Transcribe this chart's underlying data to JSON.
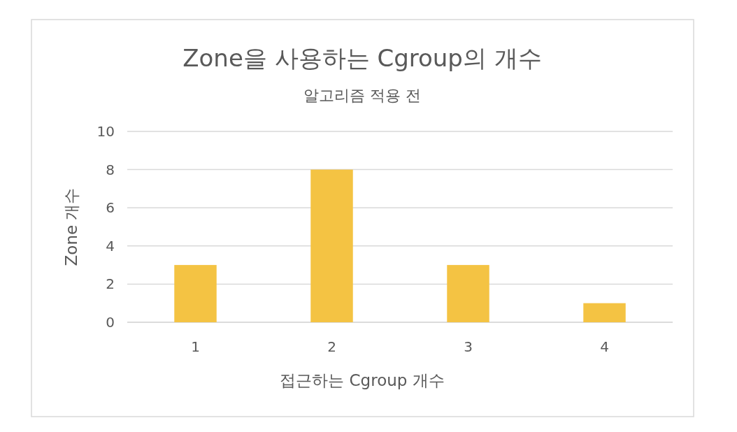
{
  "chart_data": {
    "type": "bar",
    "title": "Zone을 사용하는 Cgroup의 개수",
    "subtitle": "알고리즘 적용 전",
    "xlabel": "접근하는 Cgroup 개수",
    "ylabel": "Zone 개수",
    "categories": [
      "1",
      "2",
      "3",
      "4"
    ],
    "values": [
      3,
      8,
      3,
      1
    ],
    "color": "#f4c343",
    "ylim": [
      0,
      10
    ],
    "yticks": [
      0,
      2,
      4,
      6,
      8,
      10
    ],
    "grid": "y"
  }
}
